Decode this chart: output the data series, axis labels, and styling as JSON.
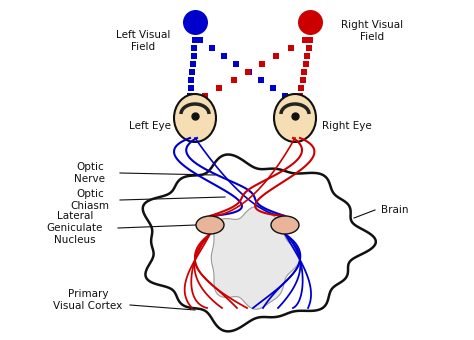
{
  "blue": "#0000cc",
  "red": "#cc0000",
  "tan": "#f5deb3",
  "salmon": "#e8b49a",
  "black": "#111111",
  "gray": "#999999",
  "figsize": [
    4.74,
    3.4
  ],
  "dpi": 100,
  "labels": {
    "left_visual": "Left Visual\nField",
    "right_visual": "Right Visual\nField",
    "left_eye": "Left Eye",
    "right_eye": "Right Eye",
    "optic_nerve": "Optic\nNerve",
    "optic_chiasm": "Optic\nChiasm",
    "lgn": "Lateral\nGeniculate\nNucleus",
    "visual_cortex": "Primary\nVisual Cortex",
    "brain": "Brain"
  }
}
